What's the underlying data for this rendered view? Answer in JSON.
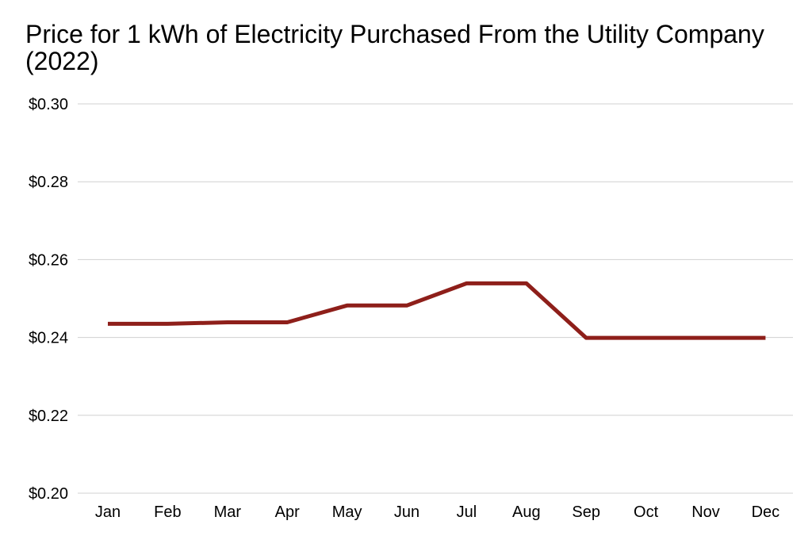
{
  "chart_data": {
    "type": "line",
    "title": "Price for 1 kWh of Electricity Purchased From the Utility Company (2022)",
    "xlabel": "",
    "ylabel": "",
    "categories": [
      "Jan",
      "Feb",
      "Mar",
      "Apr",
      "May",
      "Jun",
      "Jul",
      "Aug",
      "Sep",
      "Oct",
      "Nov",
      "Dec"
    ],
    "series": [
      {
        "values": [
          0.2435,
          0.2435,
          0.2439,
          0.2439,
          0.2482,
          0.2482,
          0.2539,
          0.2539,
          0.2399,
          0.2399,
          0.2399,
          0.2399
        ]
      }
    ],
    "ylim": [
      0.2,
      0.3
    ],
    "yticks": [
      0.2,
      0.22,
      0.24,
      0.26,
      0.28,
      0.3
    ],
    "ytick_labels": [
      "$0.20",
      "$0.22",
      "$0.24",
      "$0.26",
      "$0.28",
      "$0.30"
    ],
    "grid": true,
    "legend": "none",
    "colors": {
      "line": "#8e1f1a",
      "grid": "#d0d0d0"
    }
  }
}
